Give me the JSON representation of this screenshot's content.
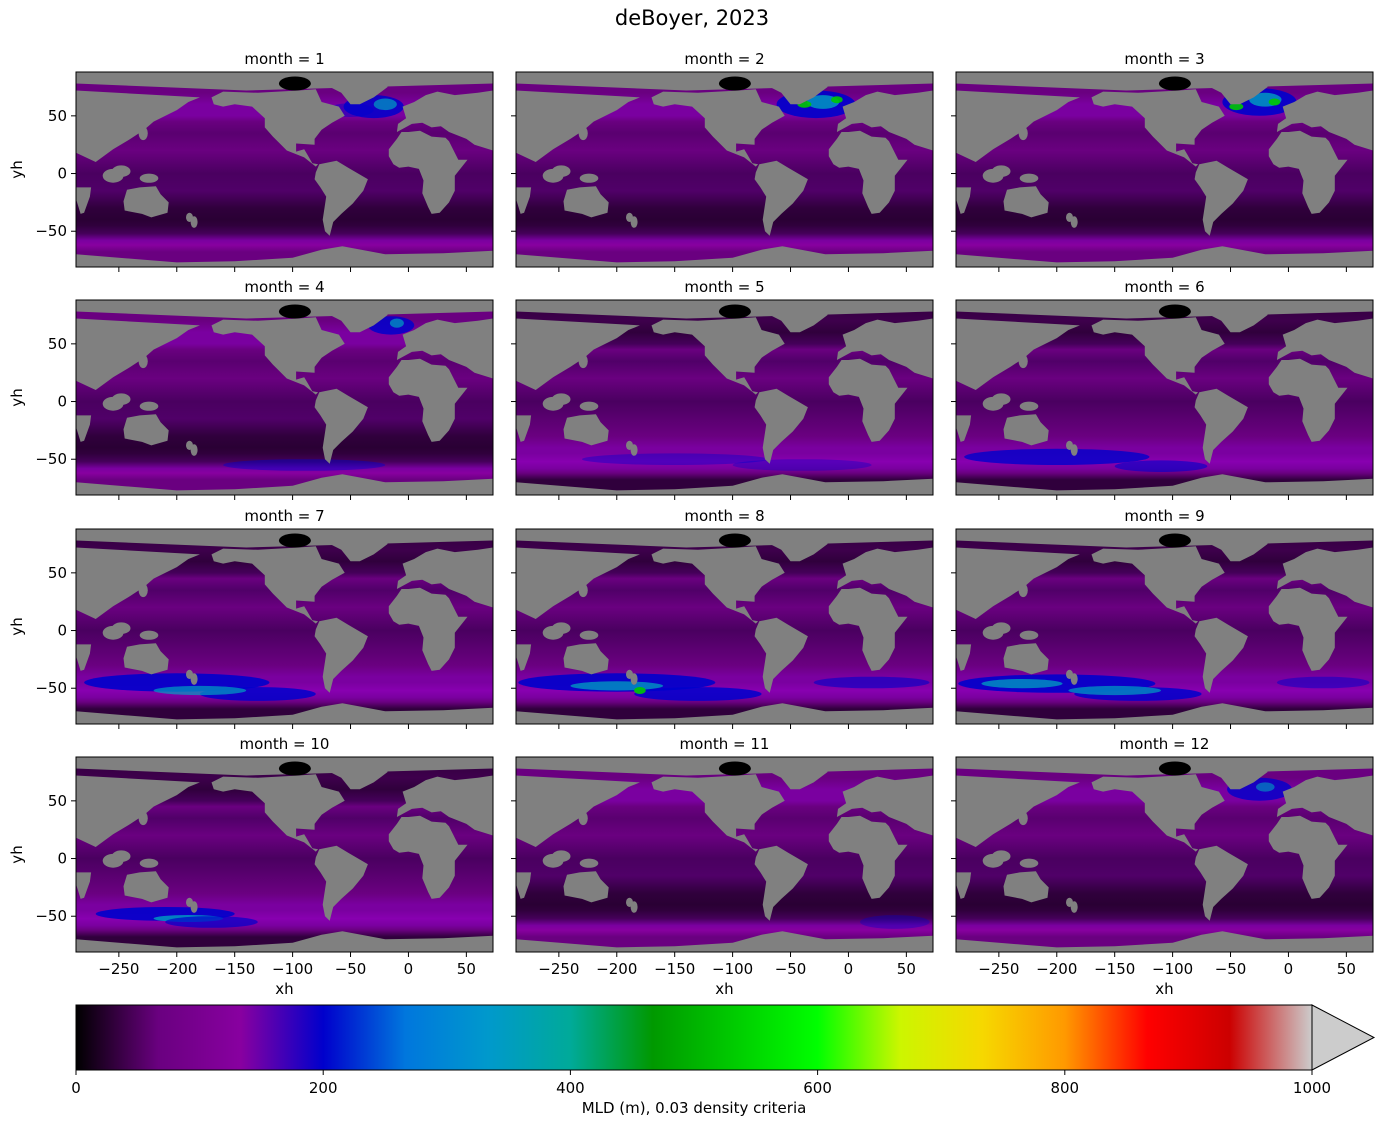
{
  "figure": {
    "title": "deBoyer, 2023"
  },
  "chart_data": {
    "type": "heatmap",
    "title": "deBoyer, 2023",
    "xlabel": "xh",
    "ylabel": "yh",
    "xlim": [
      -287,
      73
    ],
    "ylim": [
      -81,
      88
    ],
    "xticks": [
      -250,
      -200,
      -150,
      -100,
      -50,
      0,
      50
    ],
    "xtick_labels": [
      "−250",
      "−200",
      "−150",
      "−100",
      "−50",
      "0",
      "50"
    ],
    "yticks": [
      50,
      0,
      -50
    ],
    "ytick_labels": [
      "50",
      "0",
      "−50"
    ],
    "land_color": "#808080",
    "grid": false,
    "panels": [
      {
        "month": 1,
        "title": "month = 1"
      },
      {
        "month": 2,
        "title": "month = 2"
      },
      {
        "month": 3,
        "title": "month = 3"
      },
      {
        "month": 4,
        "title": "month = 4"
      },
      {
        "month": 5,
        "title": "month = 5"
      },
      {
        "month": 6,
        "title": "month = 6"
      },
      {
        "month": 7,
        "title": "month = 7"
      },
      {
        "month": 8,
        "title": "month = 8"
      },
      {
        "month": 9,
        "title": "month = 9"
      },
      {
        "month": 10,
        "title": "month = 10"
      },
      {
        "month": 11,
        "title": "month = 11"
      },
      {
        "month": 12,
        "title": "month = 12"
      }
    ],
    "colorbar": {
      "label": "MLD (m), 0.03 density criteria",
      "vmin": 0,
      "vmax": 1000,
      "extend": "max",
      "ticks": [
        0,
        200,
        400,
        600,
        800,
        1000
      ],
      "tick_labels": [
        "0",
        "200",
        "400",
        "600",
        "800",
        "1000"
      ],
      "colormap": "nipy_spectral",
      "over_color": "#cccccc",
      "colors": [
        "#000000",
        "#6a0080",
        "#8800a0",
        "#0000cc",
        "#0077dd",
        "#0099cc",
        "#00aa99",
        "#009900",
        "#00cc00",
        "#00ff00",
        "#ccf600",
        "#f6d800",
        "#ff9900",
        "#ff0000",
        "#cc0000",
        "#cccccc"
      ]
    }
  }
}
